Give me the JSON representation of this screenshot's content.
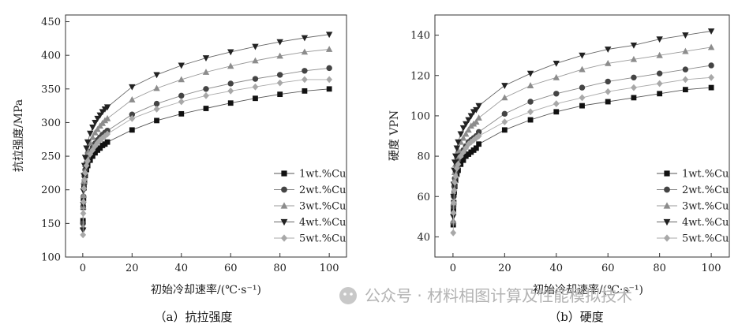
{
  "figure": {
    "watermark": "公众号 · 材料相图计算及性能模拟技术",
    "legend_entries": [
      "1wt.%Cu",
      "2wt.%Cu",
      "3wt.%Cu",
      "4wt.%Cu",
      "5wt.%Cu"
    ]
  },
  "chart_data": [
    {
      "type": "line",
      "caption": "（a）抗拉强度",
      "xlabel": "初始冷却速率/(℃·s⁻¹)",
      "ylabel": "抗拉强度/MPa",
      "xlim": [
        -7,
        107
      ],
      "ylim": [
        100,
        460
      ],
      "xticks": [
        0,
        20,
        40,
        60,
        80,
        100
      ],
      "yticks": [
        100,
        150,
        200,
        250,
        300,
        350,
        400,
        450
      ],
      "legend_position": "bottom-right",
      "x": [
        0.1,
        0.2,
        0.3,
        0.5,
        0.7,
        1,
        1.5,
        2,
        3,
        4,
        5,
        6,
        7,
        8,
        9,
        10,
        20,
        30,
        40,
        50,
        60,
        70,
        80,
        90,
        100
      ],
      "series": [
        {
          "name": "1wt.%Cu",
          "marker": "square",
          "values": [
            154,
            174,
            187,
            203,
            212,
            221,
            230,
            236,
            244,
            250,
            255,
            259,
            262,
            266,
            268,
            271,
            289,
            303,
            313,
            321,
            329,
            336,
            342,
            347,
            350
          ]
        },
        {
          "name": "2wt.%Cu",
          "marker": "circle",
          "values": [
            150,
            175,
            190,
            208,
            220,
            230,
            240,
            247,
            257,
            263,
            269,
            274,
            278,
            282,
            285,
            288,
            312,
            328,
            340,
            350,
            358,
            365,
            371,
            377,
            381
          ]
        },
        {
          "name": "3wt.%Cu",
          "marker": "triangle-up",
          "values": [
            145,
            175,
            192,
            213,
            227,
            238,
            250,
            258,
            270,
            278,
            285,
            290,
            295,
            299,
            303,
            306,
            334,
            351,
            364,
            375,
            384,
            392,
            399,
            405,
            409
          ]
        },
        {
          "name": "4wt.%Cu",
          "marker": "triangle-down",
          "values": [
            140,
            178,
            198,
            221,
            236,
            248,
            262,
            271,
            284,
            293,
            300,
            306,
            311,
            316,
            320,
            323,
            353,
            371,
            385,
            396,
            405,
            413,
            420,
            426,
            431
          ]
        },
        {
          "name": "5wt.%Cu",
          "marker": "diamond",
          "values": [
            133,
            165,
            182,
            202,
            215,
            225,
            236,
            243,
            253,
            259,
            265,
            270,
            274,
            277,
            280,
            283,
            306,
            320,
            331,
            340,
            347,
            353,
            359,
            364,
            364
          ]
        }
      ]
    },
    {
      "type": "line",
      "caption": "（b）硬度",
      "xlabel": "初始冷却速率/(℃·s⁻¹)",
      "ylabel": "硬度 VPN",
      "xlim": [
        -7,
        107
      ],
      "ylim": [
        30,
        150
      ],
      "xticks": [
        0,
        20,
        40,
        60,
        80,
        100
      ],
      "yticks": [
        40,
        60,
        80,
        100,
        120,
        140
      ],
      "legend_position": "bottom-right",
      "x": [
        0.1,
        0.2,
        0.3,
        0.5,
        0.7,
        1,
        1.5,
        2,
        3,
        4,
        5,
        6,
        7,
        8,
        9,
        10,
        20,
        30,
        40,
        50,
        60,
        70,
        80,
        90,
        100
      ],
      "series": [
        {
          "name": "1wt.%Cu",
          "marker": "square",
          "values": [
            46,
            53,
            57,
            62,
            65,
            68,
            71,
            73,
            76,
            78,
            80,
            81,
            82,
            83,
            84,
            86,
            93,
            98,
            102,
            105,
            107,
            109,
            111,
            113,
            114
          ]
        },
        {
          "name": "2wt.%Cu",
          "marker": "circle",
          "values": [
            47,
            55,
            60,
            65,
            69,
            72,
            75,
            78,
            81,
            83,
            85,
            87,
            88,
            89,
            90,
            92,
            101,
            107,
            111,
            114,
            117,
            119,
            121,
            123,
            125
          ]
        },
        {
          "name": "3wt.%Cu",
          "marker": "triangle-up",
          "values": [
            48,
            57,
            62,
            68,
            72,
            76,
            80,
            83,
            87,
            89,
            91,
            93,
            95,
            96,
            97,
            99,
            109,
            115,
            119,
            123,
            126,
            128,
            130,
            132,
            134
          ]
        },
        {
          "name": "4wt.%Cu",
          "marker": "triangle-down",
          "values": [
            50,
            60,
            66,
            73,
            77,
            80,
            84,
            87,
            91,
            94,
            96,
            98,
            100,
            102,
            103,
            105,
            115,
            121,
            126,
            130,
            133,
            135,
            138,
            140,
            142
          ]
        },
        {
          "name": "5wt.%Cu",
          "marker": "diamond",
          "values": [
            42,
            52,
            57,
            63,
            67,
            70,
            74,
            76,
            80,
            82,
            84,
            86,
            87,
            88,
            89,
            90,
            97,
            102,
            106,
            109,
            112,
            114,
            116,
            118,
            119
          ]
        }
      ]
    }
  ]
}
